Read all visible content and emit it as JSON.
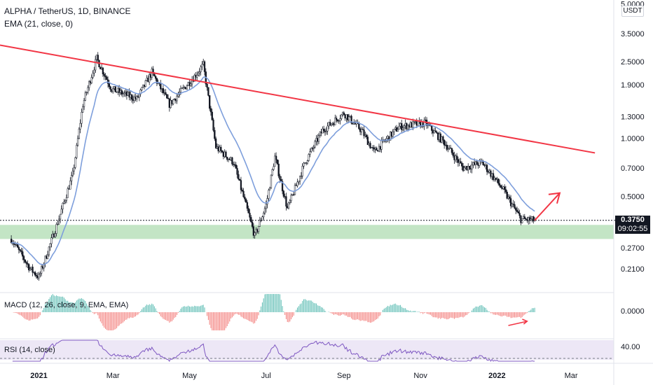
{
  "header": {
    "title": "ALPHA / TetherUS, 1D, BINANCE",
    "ema_label": "EMA (21, close, 0)",
    "unit": "USDT"
  },
  "price_axis": {
    "ticks": [
      "5.0000",
      "3.5000",
      "2.5000",
      "1.9000",
      "1.3000",
      "1.0000",
      "0.7000",
      "0.5000",
      "0.2700",
      "0.2100"
    ],
    "tick_values": [
      5.0,
      3.5,
      2.5,
      1.9,
      1.3,
      1.0,
      0.7,
      0.5,
      0.27,
      0.21
    ],
    "last_price": "0.3750",
    "countdown": "09:02:55"
  },
  "time_axis": {
    "labels": [
      "2021",
      "Mar",
      "May",
      "Jul",
      "Sep",
      "Nov",
      "2022",
      "Mar"
    ],
    "bold": [
      "2021",
      "2022"
    ]
  },
  "macd": {
    "label": "MACD (12, 26, close, 9, EMA, EMA)",
    "tick": "0.0000"
  },
  "rsi": {
    "label": "RSI (14, close)",
    "tick": "40.00"
  },
  "colors": {
    "candle": "#131722",
    "ema": "#7e9fdc",
    "trendline": "#f23645",
    "support_zone": "#b8e0bb",
    "macd_pos": "#26a69a",
    "macd_neg": "#ef5350",
    "rsi_line": "#7e57c2",
    "rsi_band": "#ede7f6"
  },
  "chart_data": {
    "type": "candlestick",
    "scale": "log",
    "price_points": [
      {
        "date": "2020-12-10",
        "price": 0.3
      },
      {
        "date": "2020-12-25",
        "price": 0.21
      },
      {
        "date": "2021-01-01",
        "price": 0.19
      },
      {
        "date": "2021-01-15",
        "price": 0.35
      },
      {
        "date": "2021-01-28",
        "price": 0.65
      },
      {
        "date": "2021-02-05",
        "price": 1.5
      },
      {
        "date": "2021-02-16",
        "price": 2.6
      },
      {
        "date": "2021-02-28",
        "price": 1.8
      },
      {
        "date": "2021-03-20",
        "price": 1.6
      },
      {
        "date": "2021-04-01",
        "price": 2.2
      },
      {
        "date": "2021-04-15",
        "price": 1.5
      },
      {
        "date": "2021-05-05",
        "price": 2.1
      },
      {
        "date": "2021-05-12",
        "price": 2.4
      },
      {
        "date": "2021-05-22",
        "price": 0.9
      },
      {
        "date": "2021-06-05",
        "price": 0.75
      },
      {
        "date": "2021-06-22",
        "price": 0.31
      },
      {
        "date": "2021-07-01",
        "price": 0.45
      },
      {
        "date": "2021-07-08",
        "price": 0.8
      },
      {
        "date": "2021-07-18",
        "price": 0.43
      },
      {
        "date": "2021-08-01",
        "price": 0.75
      },
      {
        "date": "2021-08-15",
        "price": 1.1
      },
      {
        "date": "2021-09-01",
        "price": 1.35
      },
      {
        "date": "2021-09-15",
        "price": 1.1
      },
      {
        "date": "2021-09-25",
        "price": 0.85
      },
      {
        "date": "2021-10-15",
        "price": 1.15
      },
      {
        "date": "2021-11-05",
        "price": 1.2
      },
      {
        "date": "2021-11-20",
        "price": 0.95
      },
      {
        "date": "2021-12-05",
        "price": 0.7
      },
      {
        "date": "2021-12-20",
        "price": 0.75
      },
      {
        "date": "2022-01-05",
        "price": 0.55
      },
      {
        "date": "2022-01-20",
        "price": 0.38
      },
      {
        "date": "2022-01-31",
        "price": 0.375
      }
    ],
    "trendline": [
      {
        "date": "2020-12-01",
        "price": 3.05
      },
      {
        "date": "2022-03-20",
        "price": 0.84
      }
    ],
    "support_zone": [
      0.3,
      0.355
    ],
    "last_close": 0.375,
    "projection_arrow": [
      {
        "date": "2022-01-31",
        "price": 0.375
      },
      {
        "date": "2022-02-20",
        "price": 0.52
      }
    ],
    "macd_arrow": [
      {
        "date": "2022-01-10"
      },
      {
        "date": "2022-01-25"
      }
    ]
  }
}
